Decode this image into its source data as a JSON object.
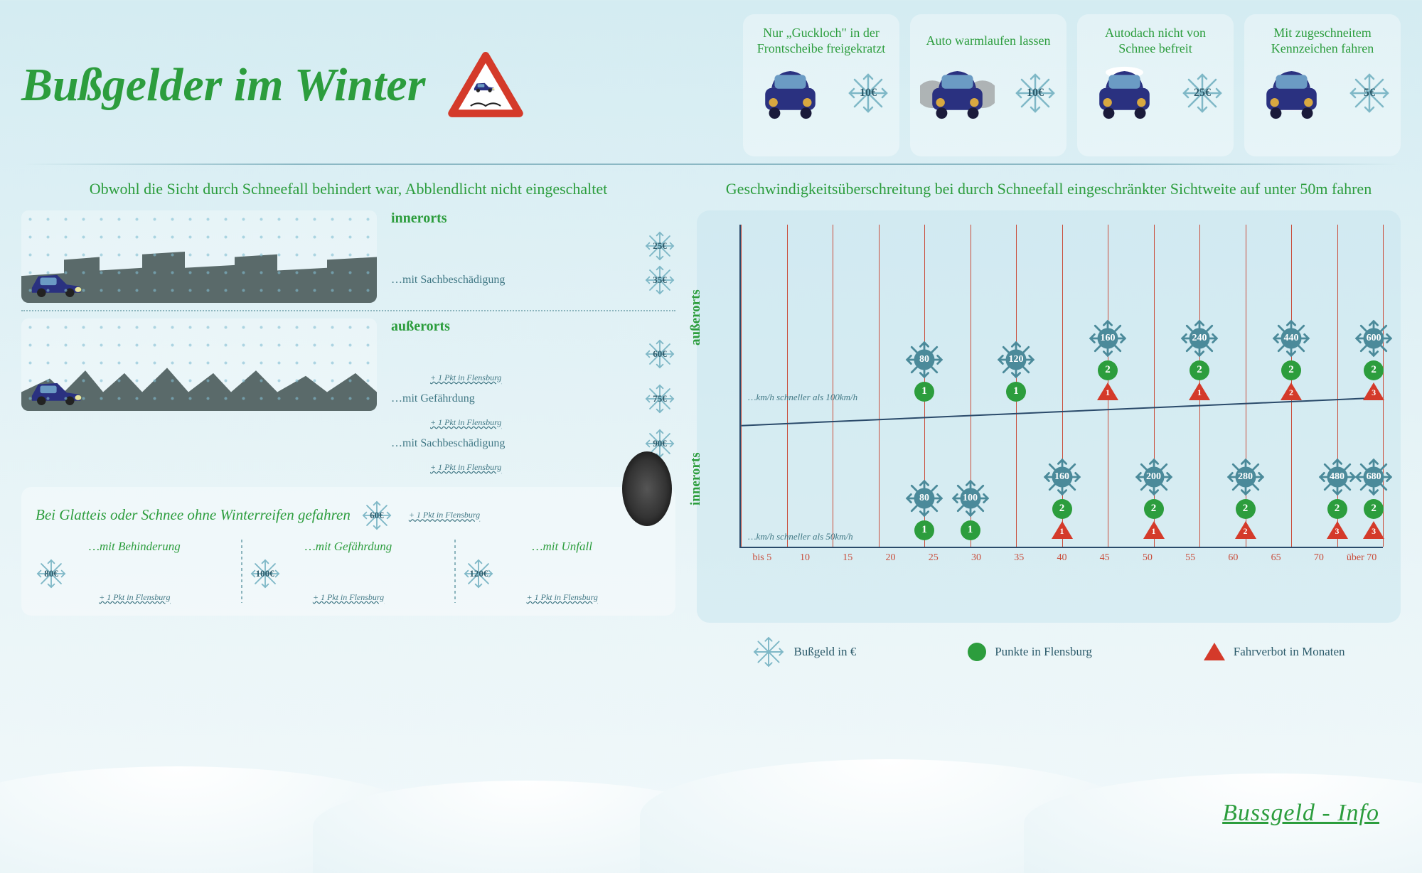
{
  "title": "Bußgelder im Winter",
  "colors": {
    "green": "#2c9d3d",
    "teal": "#417885",
    "flake": "#7fb8c7",
    "darkflake": "#4b8a9a",
    "red": "#d43a2a",
    "line": "#2a4a6a",
    "gridred": "#c94d3b"
  },
  "top_cards": [
    {
      "title": "Nur „Guckloch\" in der Frontscheibe freigekratzt",
      "fine": "10€",
      "variant": "peephole"
    },
    {
      "title": "Auto warmlaufen lassen",
      "fine": "10€",
      "variant": "exhaust"
    },
    {
      "title": "Autodach nicht von Schnee befreit",
      "fine": "25€",
      "variant": "roofsnow"
    },
    {
      "title": "Mit zugeschneitem Kennzeichen fahren",
      "fine": "5€",
      "variant": "plate"
    }
  ],
  "left_upper": {
    "heading": "Obwohl die Sicht durch Schneefall behindert war, Abblendlicht nicht eingeschaltet",
    "groups": [
      {
        "title": "innerorts",
        "scene": "city",
        "lines": [
          {
            "label": "",
            "fine": "25€",
            "pkt": false
          },
          {
            "label": "…mit Sachbeschädigung",
            "fine": "35€",
            "pkt": false
          }
        ]
      },
      {
        "title": "außerorts",
        "scene": "forest",
        "lines": [
          {
            "label": "",
            "fine": "60€",
            "pkt": true
          },
          {
            "label": "…mit Gefährdung",
            "fine": "75€",
            "pkt": true
          },
          {
            "label": "…mit Sachbeschädigung",
            "fine": "90€",
            "pkt": true
          }
        ]
      }
    ],
    "pkt_text": "+ 1 Pkt in Flensburg"
  },
  "tire": {
    "title": "Bei Glatteis oder Schnee ohne Winterreifen gefahren",
    "base_fine": "60€",
    "cols": [
      {
        "label": "…mit Behinderung",
        "fine": "80€"
      },
      {
        "label": "…mit Gefährdung",
        "fine": "100€"
      },
      {
        "label": "…mit Unfall",
        "fine": "120€"
      }
    ]
  },
  "chart": {
    "heading": "Geschwindigkeitsüberschreitung bei durch Schneefall eingeschränkter Sichtweite auf unter 50m fahren",
    "y_labels": {
      "upper": "außerorts",
      "lower": "innerorts"
    },
    "zone_notes": {
      "upper": "…km/h schneller als 100km/h",
      "lower": "…km/h schneller als 50km/h"
    },
    "x_ticks": [
      "bis 5",
      "10",
      "15",
      "20",
      "25",
      "30",
      "35",
      "40",
      "45",
      "50",
      "55",
      "60",
      "65",
      "70",
      "über 70"
    ],
    "data_upper": [
      {
        "x": 4,
        "fine": "80",
        "points": 1,
        "ban": null
      },
      {
        "x": 6,
        "fine": "120",
        "points": 1,
        "ban": null
      },
      {
        "x": 8,
        "fine": "160",
        "points": 2,
        "ban": 1
      },
      {
        "x": 10,
        "fine": "240",
        "points": 2,
        "ban": 1
      },
      {
        "x": 12,
        "fine": "440",
        "points": 2,
        "ban": 2
      },
      {
        "x": 13.8,
        "fine": "600",
        "points": 2,
        "ban": 3
      }
    ],
    "data_lower": [
      {
        "x": 4,
        "fine": "80",
        "points": 1,
        "ban": null
      },
      {
        "x": 5,
        "fine": "100",
        "points": 1,
        "ban": null
      },
      {
        "x": 7,
        "fine": "160",
        "points": 2,
        "ban": 1
      },
      {
        "x": 9,
        "fine": "200",
        "points": 2,
        "ban": 1
      },
      {
        "x": 11,
        "fine": "280",
        "points": 2,
        "ban": 2
      },
      {
        "x": 13,
        "fine": "480",
        "points": 2,
        "ban": 3
      },
      {
        "x": 13.8,
        "fine": "680",
        "points": 2,
        "ban": 3
      }
    ],
    "legend": [
      {
        "icon": "flake",
        "label": "Bußgeld in €"
      },
      {
        "icon": "circle",
        "label": "Punkte in Flensburg"
      },
      {
        "icon": "triangle",
        "label": "Fahrverbot in Monaten"
      }
    ]
  },
  "footer": "Bussgeld - Info"
}
